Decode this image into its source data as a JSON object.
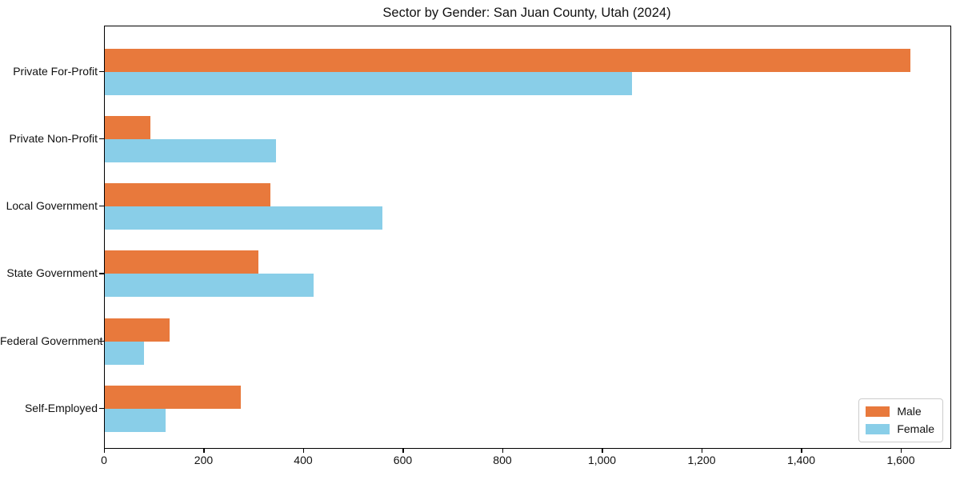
{
  "chart_data": {
    "type": "bar",
    "orientation": "horizontal",
    "title": "Sector by Gender: San Juan County, Utah (2024)",
    "categories": [
      "Private For-Profit",
      "Private Non-Profit",
      "Local Government",
      "State Government",
      "Federal Government",
      "Self-Employed"
    ],
    "series": [
      {
        "name": "Male",
        "color": "#E8793C",
        "values": [
          1617,
          91,
          332,
          308,
          130,
          273
        ]
      },
      {
        "name": "Female",
        "color": "#89CEE8",
        "values": [
          1059,
          344,
          557,
          419,
          78,
          122
        ]
      }
    ],
    "xlabel": "",
    "ylabel": "",
    "xlim": [
      0,
      1698
    ],
    "x_tick_values": [
      0,
      200,
      400,
      600,
      800,
      1000,
      1200,
      1400,
      1600
    ],
    "x_tick_labels": [
      "0",
      "200",
      "400",
      "600",
      "800",
      "1,000",
      "1,200",
      "1,400",
      "1,600"
    ],
    "grid": false,
    "legend_position": "lower right"
  },
  "legend": {
    "items": [
      {
        "label": "Male",
        "color": "#E8793C"
      },
      {
        "label": "Female",
        "color": "#89CEE8"
      }
    ]
  }
}
